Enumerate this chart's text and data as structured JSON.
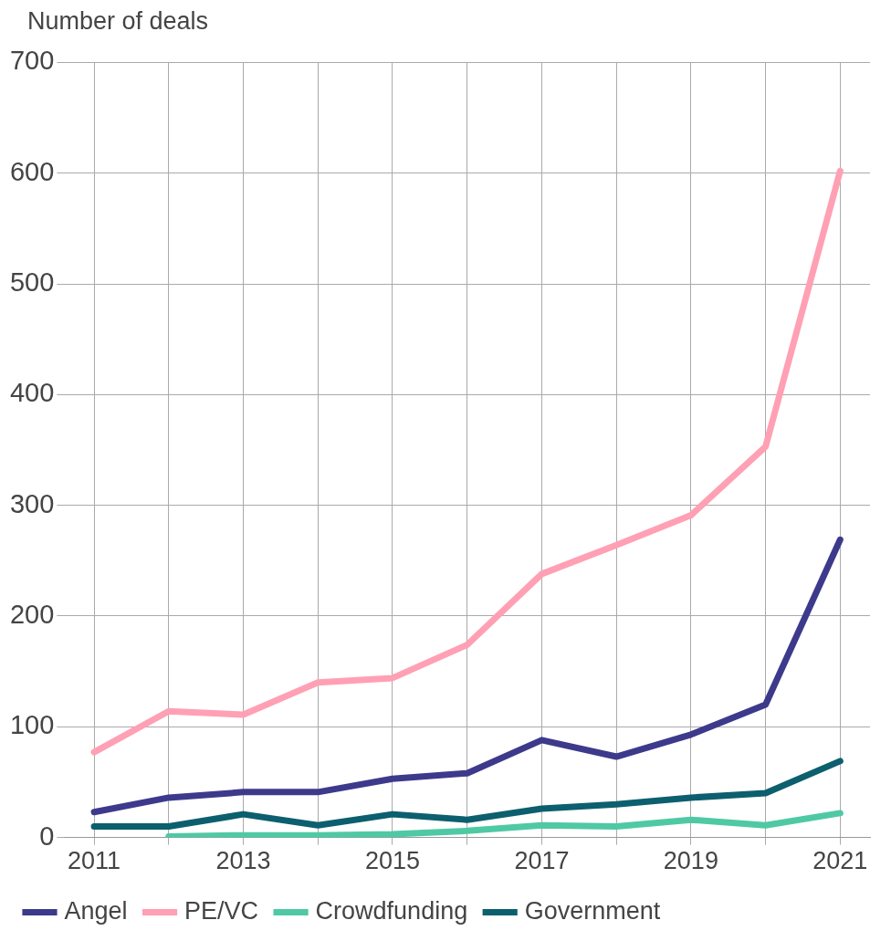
{
  "chart_data": {
    "type": "line",
    "ylabel": "Number of deals",
    "x": [
      2011,
      2012,
      2013,
      2014,
      2015,
      2016,
      2017,
      2018,
      2019,
      2020,
      2021
    ],
    "series": [
      {
        "name": "Angel",
        "color": "#3d3a8c",
        "values": [
          23,
          36,
          41,
          41,
          53,
          58,
          88,
          73,
          93,
          120,
          269
        ]
      },
      {
        "name": "PE/VC",
        "color": "#ffa0b4",
        "values": [
          77,
          114,
          111,
          140,
          144,
          174,
          238,
          264,
          291,
          353,
          602
        ]
      },
      {
        "name": "Crowdfunding",
        "color": "#4fc9a4",
        "values": [
          null,
          1,
          2,
          2,
          3,
          6,
          11,
          10,
          16,
          11,
          22
        ]
      },
      {
        "name": "Government",
        "color": "#0c5f6e",
        "values": [
          10,
          10,
          21,
          11,
          21,
          16,
          26,
          30,
          36,
          40,
          69
        ]
      }
    ],
    "xlim": [
      2010.6,
      2021.4
    ],
    "xticks": [
      2011,
      {
        "value": 2012,
        "label": null
      },
      2013,
      {
        "value": 2014,
        "label": null
      },
      2015,
      {
        "value": 2016,
        "label": null
      },
      2017,
      {
        "value": 2018,
        "label": null
      },
      2019,
      {
        "value": 2020,
        "label": null
      },
      2021
    ],
    "ylim": [
      0,
      700
    ],
    "yticks": [
      0,
      100,
      200,
      300,
      400,
      500,
      600,
      700
    ],
    "grid": true,
    "legend": "bottom",
    "marker": "none",
    "line_style": "solid"
  }
}
